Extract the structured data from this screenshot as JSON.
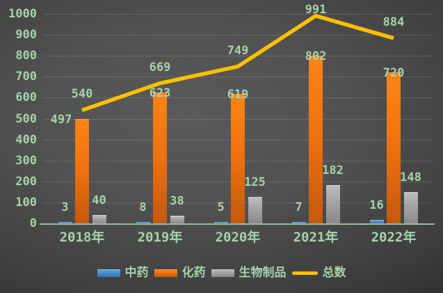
{
  "chart_data": {
    "type": "bar",
    "combo": "grouped bars with line overlay",
    "title": "",
    "categories": [
      "2018年",
      "2019年",
      "2020年",
      "2021年",
      "2022年"
    ],
    "series": [
      {
        "name": "中药",
        "slug": "tcm",
        "kind": "bar",
        "color_top": "#66a7dd",
        "color": "#4a90cc",
        "color_bottom": "#3674ae",
        "values": [
          3,
          8,
          5,
          7,
          16
        ]
      },
      {
        "name": "化药",
        "slug": "chemical-drugs",
        "kind": "bar",
        "color_top": "#fb8418",
        "color": "#f1730e",
        "color_bottom": "#c4590f",
        "values": [
          497,
          623,
          619,
          802,
          720
        ]
      },
      {
        "name": "生物制品",
        "slug": "biologics",
        "kind": "bar",
        "color_top": "#bdbdbd",
        "color": "#a3a3a3",
        "color_bottom": "#8a8a8a",
        "values": [
          40,
          38,
          125,
          182,
          148
        ]
      },
      {
        "name": "总数",
        "slug": "total",
        "kind": "line",
        "color": "#ffc000",
        "values": [
          540,
          669,
          749,
          991,
          884
        ]
      }
    ],
    "ylim": [
      0,
      1000
    ],
    "yticks": [
      "0",
      "100",
      "200",
      "300",
      "400",
      "500",
      "600",
      "700",
      "800",
      "900",
      "1000"
    ],
    "grid": "horizontal",
    "legend_position": "bottom",
    "xlabel": "",
    "ylabel": ""
  },
  "style_colors": {
    "label_text": "#a6d2aa",
    "axis_line": "#9cba9b",
    "gridline": "rgba(255,255,255,0.13)",
    "background_center": "#5a5a5a",
    "background_edge": "#212121"
  }
}
